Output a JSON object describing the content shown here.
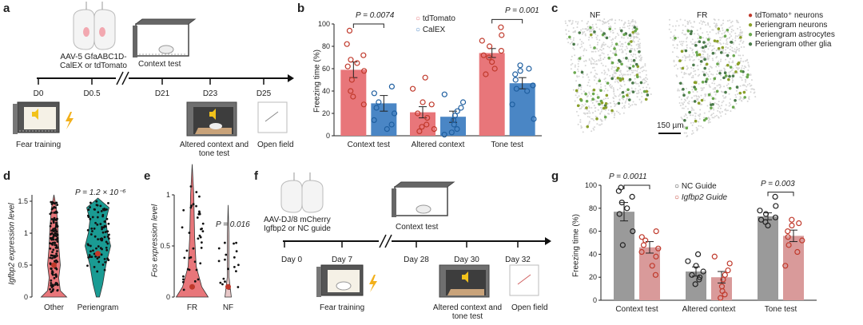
{
  "panels": {
    "a": {
      "letter": "a",
      "virus": "AAV-5 GfaABC1D-\nCalEX or tdTomato",
      "context_test": "Context test",
      "timeline": [
        "D0",
        "D0.5",
        "D21",
        "D23",
        "D25"
      ],
      "fear_training": "Fear training",
      "altered": "Altered context and\ntone test",
      "open_field": "Open field"
    },
    "b": {
      "letter": "b",
      "ylabel": "Freezing time (%)",
      "legend": [
        "tdTomato",
        "CalEX"
      ],
      "p_values": [
        "P = 0.0074",
        "P = 0.001"
      ],
      "colors": {
        "red": "#e8767a",
        "blue": "#4a86c5"
      }
    },
    "c": {
      "letter": "c",
      "labels": [
        "NF",
        "FR"
      ],
      "legend": [
        "tdTomato⁺ neurons",
        "Periengram neurons",
        "Periengram astrocytes",
        "Periengram other glia"
      ],
      "legend_colors": [
        "#c0392b",
        "#8aa02a",
        "#6aa84f",
        "#4a7a4a"
      ],
      "scale": "150 µm"
    },
    "d": {
      "letter": "d",
      "ylabel": "Igfbp2 expression level",
      "p_value": "P = 1.2 × 10⁻⁶",
      "categories": [
        "Other",
        "Periengram"
      ]
    },
    "e": {
      "letter": "e",
      "ylabel": "Fos expression level",
      "p_value": "P = 0.016",
      "categories": [
        "FR",
        "NF"
      ]
    },
    "f": {
      "letter": "f",
      "virus": "AAV-DJ/8 mCherry\nIgfbp2 or NC guide",
      "context_test": "Context test",
      "timeline": [
        "Day 0",
        "Day 7",
        "Day 28",
        "Day 30",
        "Day 32"
      ],
      "fear_training": "Fear training",
      "altered": "Altered context and\ntone test",
      "open_field": "Open field"
    },
    "g": {
      "letter": "g",
      "ylabel": "Freezing time (%)",
      "legend": [
        "NC Guide",
        "Igfbp2 Guide"
      ],
      "p_values": [
        "P = 0.0011",
        "P = 0.003"
      ],
      "colors": {
        "grey": "#9a9a9a",
        "pink": "#d99a9a"
      }
    }
  },
  "chart_data": [
    {
      "id": "b",
      "type": "bar",
      "categories": [
        "Context test",
        "Altered context",
        "Tone test"
      ],
      "series": [
        {
          "name": "tdTomato",
          "values": [
            59,
            21,
            74
          ],
          "errors": [
            7,
            5,
            4
          ],
          "points": [
            [
              94,
              82,
              72,
              68,
              65,
              62,
              58,
              50,
              40,
              35,
              28
            ],
            [
              52,
              42,
              30,
              28,
              20,
              16,
              10,
              8,
              6,
              4
            ],
            [
              97,
              90,
              85,
              80,
              76,
              72,
              70,
              66,
              60,
              55
            ]
          ]
        },
        {
          "name": "CalEX",
          "values": [
            29,
            17,
            47
          ],
          "errors": [
            7,
            5,
            5
          ],
          "points": [
            [
              44,
              38,
              30,
              25,
              20,
              14,
              10,
              6
            ],
            [
              37,
              30,
              25,
              22,
              18,
              14,
              10,
              6,
              3,
              1
            ],
            [
              63,
              60,
              58,
              55,
              50,
              45,
              42,
              40,
              28,
              15
            ]
          ]
        }
      ],
      "ylabel": "Freezing time (%)",
      "ylim": [
        0,
        100
      ],
      "yticks": [
        0,
        20,
        40,
        60,
        80,
        100
      ]
    },
    {
      "id": "d",
      "type": "violin",
      "categories": [
        "Other",
        "Periengram"
      ],
      "ylim": [
        0,
        1.6
      ],
      "yticks": [
        0,
        0.5,
        1.0,
        1.5
      ],
      "medians": [
        0.5,
        0.68
      ]
    },
    {
      "id": "e",
      "type": "violin",
      "categories": [
        "FR",
        "NF"
      ],
      "ylim": [
        0,
        1.0
      ],
      "yticks": [
        0,
        0.5,
        1.0
      ],
      "medians": [
        0.1,
        0.1
      ]
    },
    {
      "id": "g",
      "type": "bar",
      "categories": [
        "Context test",
        "Altered context",
        "Tone test"
      ],
      "series": [
        {
          "name": "NC Guide",
          "values": [
            77,
            25,
            73
          ],
          "errors": [
            8,
            4,
            3
          ],
          "points": [
            [
              98,
              95,
              90,
              85,
              80,
              75,
              60,
              48
            ],
            [
              40,
              34,
              30,
              25,
              22,
              20,
              18,
              14
            ],
            [
              90,
              82,
              78,
              75,
              72,
              70,
              68,
              65
            ]
          ]
        },
        {
          "name": "Igfbp2 Guide",
          "values": [
            46,
            20,
            56
          ],
          "errors": [
            5,
            5,
            5
          ],
          "points": [
            [
              60,
              55,
              52,
              48,
              45,
              42,
              38,
              30,
              22
            ],
            [
              38,
              32,
              26,
              22,
              18,
              12,
              8,
              5,
              2
            ],
            [
              70,
              67,
              65,
              60,
              55,
              52,
              48,
              42,
              30
            ]
          ]
        }
      ],
      "ylabel": "Freezing time (%)",
      "ylim": [
        0,
        100
      ],
      "yticks": [
        0,
        20,
        40,
        60,
        80,
        100
      ]
    }
  ]
}
